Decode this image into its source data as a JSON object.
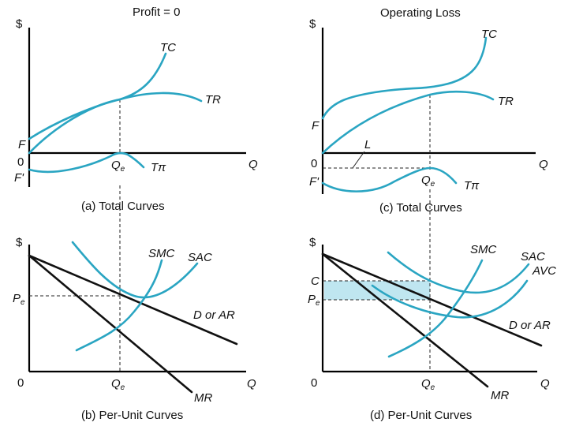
{
  "titles": {
    "left": "Profit = 0",
    "right": "Operating Loss"
  },
  "captions": {
    "a": "(a) Total Curves",
    "b": "(b) Per-Unit Curves",
    "c": "(c) Total Curves",
    "d": "(d) Per-Unit Curves"
  },
  "labels": {
    "dollar": "$",
    "zero": "0",
    "q": "Q",
    "f": "F",
    "f_prime": "F'",
    "q_e_main": "Q",
    "q_e_sub": "e",
    "p_e_main": "P",
    "p_e_sub": "e",
    "tc": "TC",
    "tr": "TR",
    "t_pi": "Tπ",
    "l": "L",
    "smc": "SMC",
    "sac": "SAC",
    "avc": "AVC",
    "d_or_ar": "D or AR",
    "mr": "MR",
    "c": "C"
  },
  "colors": {
    "curve": "#2aa5c2",
    "axis": "#000000",
    "shaded_band": "#bfe6f0"
  }
}
